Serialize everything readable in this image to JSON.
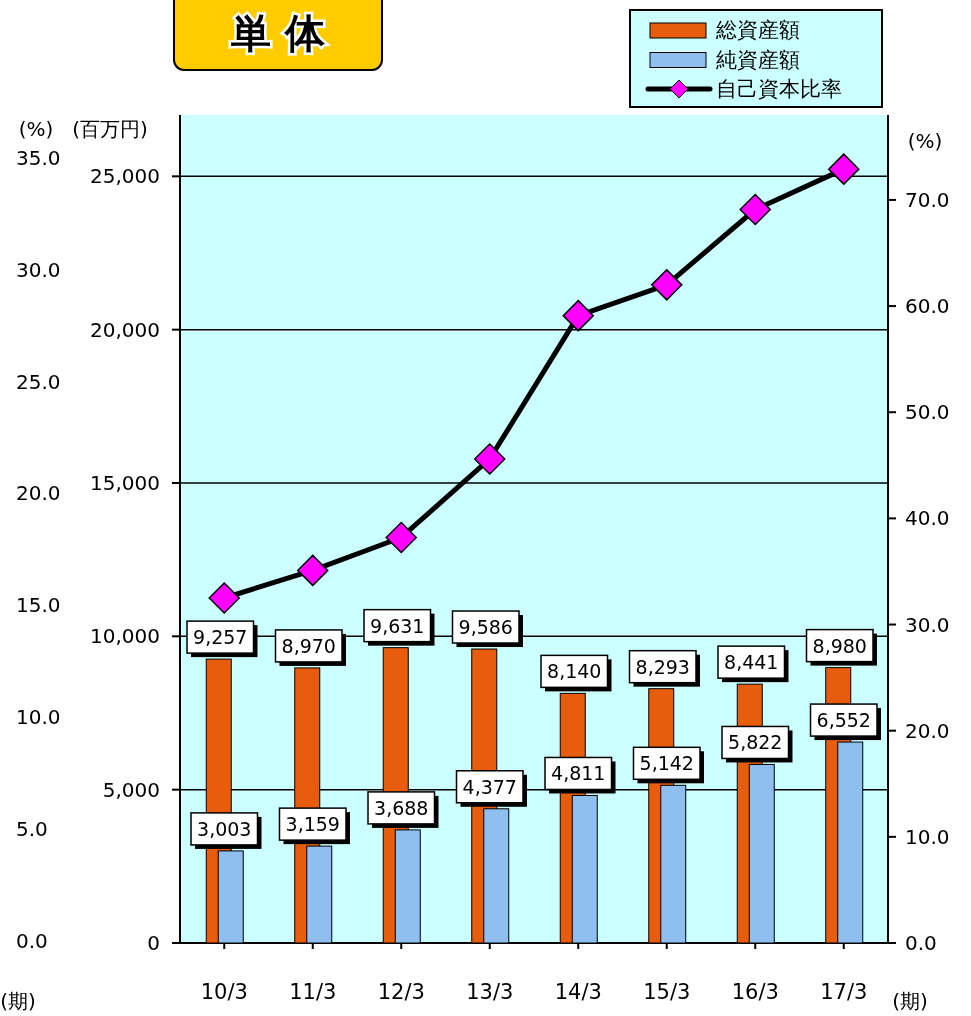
{
  "chart_data": {
    "type": "bar",
    "title": "単 体",
    "categories": [
      "10/3",
      "11/3",
      "12/3",
      "13/3",
      "14/3",
      "15/3",
      "16/3",
      "17/3"
    ],
    "series": [
      {
        "name": "総資産額",
        "color": "#e85c0d",
        "values": [
          9257,
          8970,
          9631,
          9586,
          8140,
          8293,
          8441,
          8980
        ],
        "value_labels": [
          "9,257",
          "8,970",
          "9,631",
          "9,586",
          "8,140",
          "8,293",
          "8,441",
          "8,980"
        ]
      },
      {
        "name": "純資産額",
        "color": "#8fbfef",
        "values": [
          3003,
          3159,
          3688,
          4377,
          4811,
          5142,
          5822,
          6552
        ],
        "value_labels": [
          "3,003",
          "3,159",
          "3,688",
          "4,377",
          "4,811",
          "5,142",
          "5,822",
          "6,552"
        ]
      },
      {
        "name": "自己資本比率",
        "type": "line",
        "axis": "y2",
        "color": "#ff00ff",
        "marker": "diamond",
        "values": [
          32.5,
          35.1,
          38.2,
          45.6,
          59.1,
          62.0,
          69.1,
          72.9
        ]
      }
    ],
    "ylabel": "(百万円)",
    "y2label": "(%)",
    "y3label": "(%)",
    "xlabel": "(期)",
    "annotations": [
      "(期)"
    ],
    "ylim": [
      0,
      27000
    ],
    "yticks": [
      {
        "value": 0,
        "label": "0"
      },
      {
        "value": 5000,
        "label": "5,000"
      },
      {
        "value": 10000,
        "label": "10,000"
      },
      {
        "value": 15000,
        "label": "15,000"
      },
      {
        "value": 20000,
        "label": "20,000"
      },
      {
        "value": 25000,
        "label": "25,000"
      }
    ],
    "y2lim": [
      0,
      78
    ],
    "y2ticks": [
      {
        "value": 0,
        "label": "0.0"
      },
      {
        "value": 10,
        "label": "10.0"
      },
      {
        "value": 20,
        "label": "20.0"
      },
      {
        "value": 30,
        "label": "30.0"
      },
      {
        "value": 40,
        "label": "40.0"
      },
      {
        "value": 50,
        "label": "50.0"
      },
      {
        "value": 60,
        "label": "60.0"
      },
      {
        "value": 70,
        "label": "70.0"
      }
    ],
    "y3lim": [
      0,
      37
    ],
    "y3ticks": [
      {
        "value": 0,
        "label": "0.0"
      },
      {
        "value": 5,
        "label": "5.0"
      },
      {
        "value": 10,
        "label": "10.0"
      },
      {
        "value": 15,
        "label": "15.0"
      },
      {
        "value": 20,
        "label": "20.0"
      },
      {
        "value": 25,
        "label": "25.0"
      },
      {
        "value": 30,
        "label": "30.0"
      },
      {
        "value": 35,
        "label": "35.0"
      }
    ],
    "grid": "y",
    "legend": "top right"
  }
}
